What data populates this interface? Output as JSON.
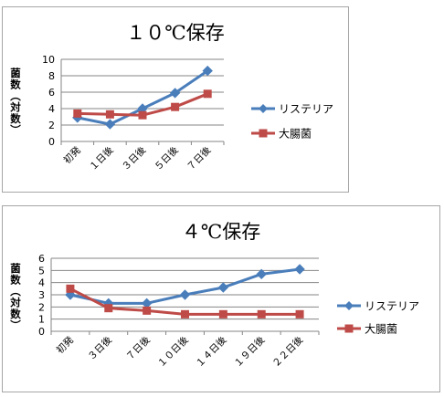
{
  "chart_data": [
    {
      "type": "line",
      "title": "１０℃保存",
      "ylabel": "菌数（対数）",
      "xlabel": "",
      "categories": [
        "初発",
        "１日後",
        "３日後",
        "５日後",
        "７日後"
      ],
      "ylim": [
        0,
        10
      ],
      "yticks": [
        0,
        2,
        4,
        6,
        8,
        10
      ],
      "grid": true,
      "legend_position": "right",
      "series": [
        {
          "name": "リステリア",
          "color": "#4a7ebb",
          "marker": "diamond",
          "values": [
            2.9,
            2.1,
            4.0,
            5.9,
            8.6
          ]
        },
        {
          "name": "大腸菌",
          "color": "#be4b48",
          "marker": "square",
          "values": [
            3.4,
            3.3,
            3.2,
            4.2,
            5.8
          ]
        }
      ]
    },
    {
      "type": "line",
      "title": "４℃保存",
      "ylabel": "菌数（対数）",
      "xlabel": "",
      "categories": [
        "初発",
        "３日後",
        "７日後",
        "１０日後",
        "１４日後",
        "１９日後",
        "２２日後"
      ],
      "ylim": [
        0,
        6
      ],
      "yticks": [
        0,
        1,
        2,
        3,
        4,
        5,
        6
      ],
      "grid": true,
      "legend_position": "right",
      "series": [
        {
          "name": "リステリア",
          "color": "#4a7ebb",
          "marker": "diamond",
          "values": [
            3.0,
            2.3,
            2.3,
            3.0,
            3.6,
            4.7,
            5.1
          ]
        },
        {
          "name": "大腸菌",
          "color": "#be4b48",
          "marker": "square",
          "values": [
            3.5,
            1.9,
            1.7,
            1.4,
            1.4,
            1.4,
            1.4
          ]
        }
      ]
    }
  ]
}
